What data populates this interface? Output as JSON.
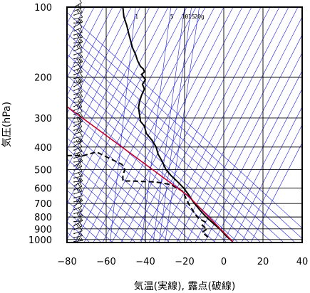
{
  "chart_data": {
    "type": "line",
    "xlabel": "気温(実線), 露点(破線)",
    "ylabel": "気圧(hPa)",
    "xlim": [
      -80,
      40
    ],
    "ylim": [
      1030,
      100
    ],
    "y_scale": "log",
    "grid": true,
    "x_ticks": [
      "−80",
      "−60",
      "−40",
      "−20",
      "0",
      "20",
      "40"
    ],
    "x_tick_values": [
      -80,
      -60,
      -40,
      -20,
      0,
      20,
      40
    ],
    "y_ticks": [
      "100",
      "200",
      "300",
      "400",
      "500",
      "600",
      "700",
      "800",
      "900",
      "1000"
    ],
    "y_tick_values": [
      100,
      200,
      300,
      400,
      500,
      600,
      700,
      800,
      900,
      1000
    ],
    "mixing_ratio_labels": [
      {
        "text": "1",
        "x": -44.5
      },
      {
        "text": "5",
        "x": -26.5
      },
      {
        "text": "10",
        "x": -19.8
      },
      {
        "text": "15",
        "x": -16.5
      },
      {
        "text": "20g",
        "x": -12.5
      }
    ],
    "colors": {
      "temperature": "#000000",
      "dewpoint": "#000000",
      "parcel": "#c00030",
      "guides": "#1c1ce0",
      "grid": "#000000"
    },
    "series": [
      {
        "style": "solid",
        "points": [
          {
            "t": -51.5,
            "p": 100
          },
          {
            "t": -51.0,
            "p": 110
          },
          {
            "t": -49.5,
            "p": 120
          },
          {
            "t": -48.5,
            "p": 130
          },
          {
            "t": -47.5,
            "p": 140
          },
          {
            "t": -46.5,
            "p": 150
          },
          {
            "t": -45.0,
            "p": 160
          },
          {
            "t": -44.0,
            "p": 170
          },
          {
            "t": -42.5,
            "p": 180
          },
          {
            "t": -41.0,
            "p": 185
          },
          {
            "t": -40.5,
            "p": 190
          },
          {
            "t": -42.0,
            "p": 195
          },
          {
            "t": -40.0,
            "p": 205
          },
          {
            "t": -41.5,
            "p": 215
          },
          {
            "t": -40.5,
            "p": 225
          },
          {
            "t": -42.0,
            "p": 240
          },
          {
            "t": -43.0,
            "p": 255
          },
          {
            "t": -43.5,
            "p": 270
          },
          {
            "t": -43.0,
            "p": 290
          },
          {
            "t": -42.5,
            "p": 310
          },
          {
            "t": -40.5,
            "p": 325
          },
          {
            "t": -39.5,
            "p": 350
          },
          {
            "t": -36.5,
            "p": 375
          },
          {
            "t": -34.5,
            "p": 400
          },
          {
            "t": -33.5,
            "p": 430
          },
          {
            "t": -31.5,
            "p": 460
          },
          {
            "t": -29.5,
            "p": 500
          },
          {
            "t": -27.0,
            "p": 530
          },
          {
            "t": -23.5,
            "p": 565
          },
          {
            "t": -20.5,
            "p": 600
          },
          {
            "t": -18.0,
            "p": 640
          },
          {
            "t": -15.5,
            "p": 690
          },
          {
            "t": -12.0,
            "p": 750
          },
          {
            "t": -9.0,
            "p": 800
          },
          {
            "t": -5.5,
            "p": 850
          },
          {
            "t": -1.5,
            "p": 910
          },
          {
            "t": 1.5,
            "p": 970
          },
          {
            "t": 4.5,
            "p": 1020
          }
        ]
      },
      {
        "style": "dashed",
        "points": [
          {
            "t": -80,
            "p": 435
          },
          {
            "t": -71.5,
            "p": 435
          },
          {
            "t": -65.0,
            "p": 420
          },
          {
            "t": -52.0,
            "p": 475
          },
          {
            "t": -50.5,
            "p": 500
          },
          {
            "t": -51.5,
            "p": 530
          },
          {
            "t": -51.5,
            "p": 560
          },
          {
            "t": -48.0,
            "p": 560
          },
          {
            "t": -35.0,
            "p": 565
          },
          {
            "t": -27.0,
            "p": 580
          },
          {
            "t": -21.0,
            "p": 620
          },
          {
            "t": -18.0,
            "p": 700
          },
          {
            "t": -15.0,
            "p": 770
          },
          {
            "t": -13.0,
            "p": 810
          },
          {
            "t": -9.5,
            "p": 840
          },
          {
            "t": -11.0,
            "p": 870
          },
          {
            "t": -8.5,
            "p": 900
          },
          {
            "t": -11.0,
            "p": 930
          },
          {
            "t": -8.5,
            "p": 970
          },
          {
            "t": -7.0,
            "p": 1000
          }
        ]
      },
      {
        "style": "parcel",
        "points": [
          {
            "t": 4.5,
            "p": 1020
          },
          {
            "t": -18.0,
            "p": 650
          },
          {
            "t": -80.0,
            "p": 268
          }
        ]
      }
    ],
    "wind_barbs_count": 60
  }
}
